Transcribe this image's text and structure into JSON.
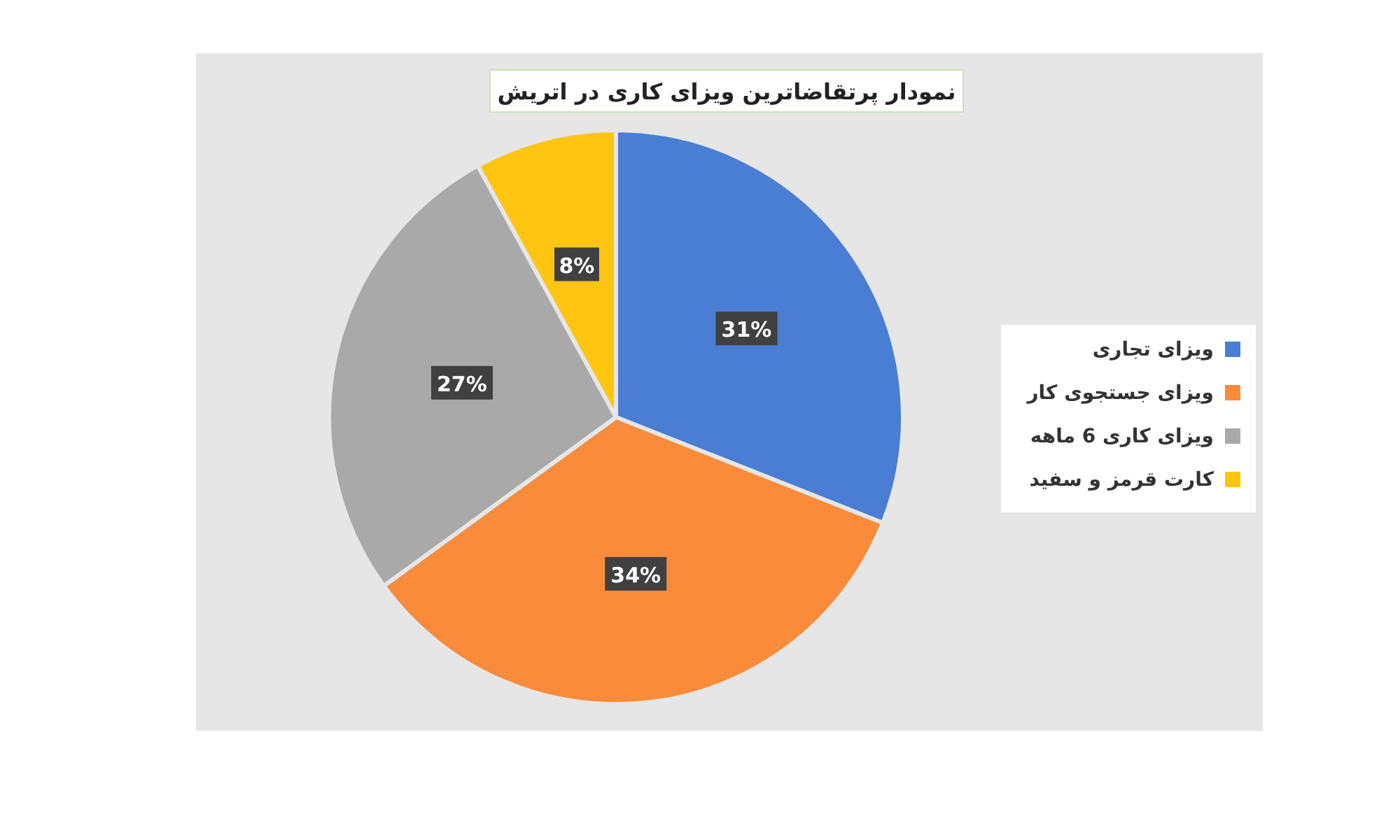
{
  "chart_data": {
    "type": "pie",
    "title": "نمودار پرتقاضاترین ویزای کاری در اتریش",
    "categories": [
      "ویزای تجاری",
      "ویزای جستجوی کار",
      "ویزای کاری 6 ماهه",
      "کارت قرمز و سفید"
    ],
    "values": [
      31,
      34,
      27,
      8
    ],
    "colors": [
      "#4a7dd4",
      "#f98b3a",
      "#a9a9a9",
      "#ffc510"
    ],
    "value_labels": [
      "31%",
      "34%",
      "27%",
      "8%"
    ],
    "legend": "right"
  }
}
